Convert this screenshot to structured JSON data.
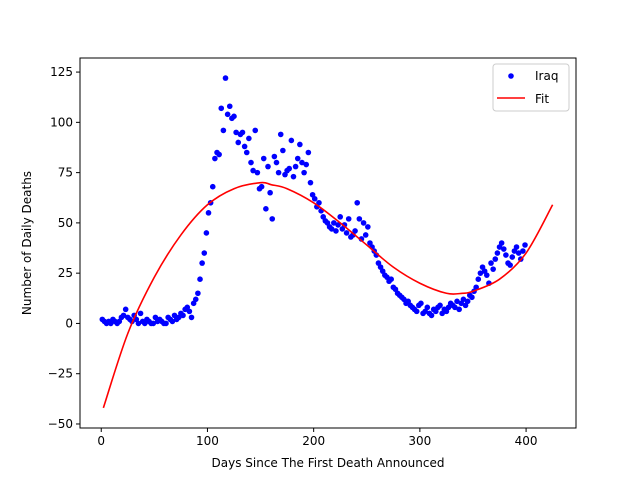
{
  "chart_data": {
    "type": "scatter",
    "xlabel": "Days Since The First Death Announced",
    "ylabel": "Number of Daily Deaths",
    "xlim": [
      -20,
      447
    ],
    "ylim": [
      -52,
      132
    ],
    "xticks": [
      0,
      100,
      200,
      300,
      400
    ],
    "yticks": [
      -50,
      -25,
      0,
      25,
      50,
      75,
      100,
      125
    ],
    "grid": false,
    "legend_position": "top-right",
    "series": [
      {
        "name": "Iraq",
        "kind": "points",
        "color": "#0000ff",
        "x": [
          1,
          3,
          5,
          7,
          9,
          11,
          13,
          15,
          17,
          19,
          21,
          23,
          25,
          27,
          29,
          31,
          33,
          35,
          37,
          39,
          41,
          43,
          45,
          47,
          49,
          51,
          53,
          55,
          57,
          59,
          61,
          63,
          65,
          67,
          69,
          71,
          73,
          75,
          77,
          79,
          81,
          83,
          85,
          87,
          89,
          91,
          93,
          95,
          97,
          99,
          101,
          103,
          105,
          107,
          109,
          111,
          113,
          115,
          117,
          119,
          121,
          123,
          125,
          127,
          129,
          131,
          133,
          135,
          137,
          139,
          141,
          143,
          145,
          147,
          149,
          151,
          153,
          155,
          157,
          159,
          161,
          163,
          165,
          167,
          169,
          171,
          173,
          175,
          177,
          179,
          181,
          183,
          185,
          187,
          189,
          191,
          193,
          195,
          197,
          199,
          201,
          203,
          205,
          207,
          209,
          211,
          213,
          215,
          217,
          219,
          221,
          223,
          225,
          227,
          229,
          231,
          233,
          235,
          237,
          239,
          241,
          243,
          245,
          247,
          249,
          251,
          253,
          255,
          257,
          259,
          261,
          263,
          265,
          267,
          269,
          271,
          273,
          275,
          277,
          279,
          281,
          283,
          285,
          287,
          289,
          291,
          293,
          295,
          297,
          299,
          301,
          303,
          305,
          307,
          309,
          311,
          313,
          315,
          317,
          319,
          321,
          323,
          325,
          327,
          329,
          331,
          333,
          335,
          337,
          339,
          341,
          343,
          345,
          347,
          349,
          351,
          353,
          355,
          357,
          359,
          361,
          363,
          365,
          367,
          369,
          371,
          373,
          375,
          377,
          379,
          381,
          383,
          385,
          387,
          389,
          391,
          393,
          395,
          397,
          399
        ],
        "y": [
          2,
          1,
          0,
          1,
          0,
          2,
          1,
          0,
          1,
          3,
          4,
          7,
          3,
          2,
          1,
          4,
          2,
          0,
          5,
          1,
          0,
          2,
          1,
          0,
          0,
          3,
          1,
          2,
          1,
          0,
          0,
          3,
          2,
          1,
          4,
          2,
          3,
          5,
          4,
          7,
          8,
          6,
          3,
          10,
          12,
          15,
          22,
          30,
          35,
          45,
          55,
          60,
          68,
          82,
          85,
          84,
          107,
          96,
          122,
          104,
          108,
          102,
          103,
          95,
          90,
          94,
          95,
          88,
          85,
          92,
          80,
          76,
          96,
          75,
          67,
          68,
          82,
          57,
          78,
          65,
          52,
          83,
          80,
          75,
          94,
          86,
          74,
          76,
          77,
          91,
          73,
          78,
          82,
          89,
          80,
          75,
          79,
          85,
          70,
          64,
          62,
          58,
          60,
          56,
          53,
          51,
          50,
          48,
          47,
          50,
          46,
          49,
          53,
          47,
          49,
          45,
          52,
          43,
          44,
          46,
          60,
          52,
          42,
          50,
          44,
          48,
          40,
          38,
          36,
          34,
          30,
          28,
          26,
          24,
          23,
          21,
          22,
          18,
          17,
          15,
          14,
          13,
          12,
          10,
          11,
          9,
          8,
          7,
          6,
          9,
          10,
          5,
          6,
          8,
          5,
          4,
          7,
          6,
          8,
          9,
          5,
          7,
          6,
          8,
          10,
          9,
          8,
          11,
          7,
          10,
          12,
          9,
          11,
          14,
          13,
          16,
          18,
          22,
          25,
          28,
          26,
          24,
          20,
          30,
          27,
          32,
          35,
          38,
          40,
          37,
          34,
          30,
          29,
          33,
          36,
          38,
          35,
          32,
          36,
          39
        ]
      },
      {
        "name": "Fit",
        "kind": "line",
        "color": "#ff0000",
        "x": [
          2,
          25,
          50,
          75,
          100,
          125,
          150,
          160,
          175,
          200,
          225,
          250,
          275,
          300,
          325,
          340,
          350,
          375,
          400,
          425
        ],
        "y": [
          -42,
          -5,
          23,
          44,
          59,
          67,
          70,
          69,
          67,
          60,
          50,
          39,
          28,
          20,
          15,
          15,
          16,
          22,
          35,
          59
        ]
      }
    ]
  }
}
